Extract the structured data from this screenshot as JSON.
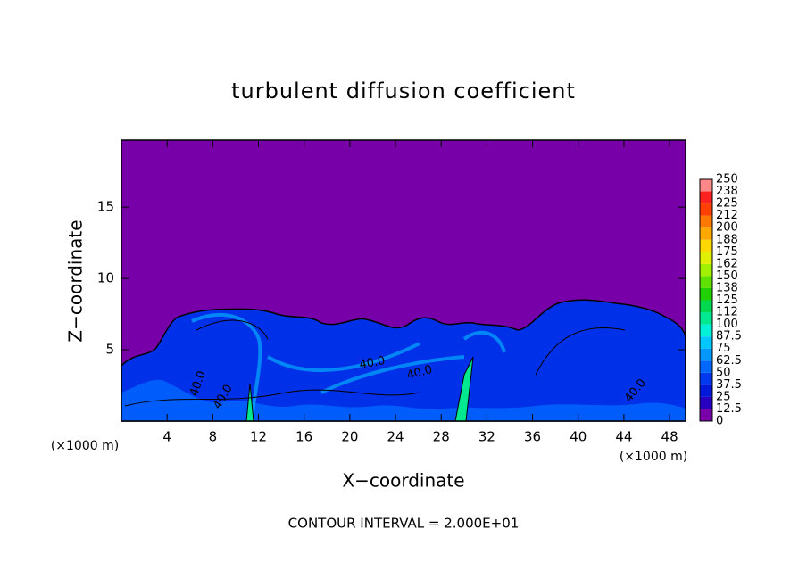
{
  "chart_data": {
    "type": "contour",
    "title": "turbulent diffusion coefficient",
    "x_label": "X−coordinate",
    "y_label": "Z−coordinate",
    "x_unit": "(×1000 m)",
    "footer": "CONTOUR INTERVAL = 2.000E+01",
    "xlim": [
      0,
      49.4
    ],
    "ylim": [
      0,
      19.7
    ],
    "xticks": [
      4,
      8,
      12,
      16,
      20,
      24,
      28,
      32,
      36,
      40,
      44,
      48
    ],
    "yticks": [
      5,
      10,
      15
    ],
    "contour_labels": [
      "40.0",
      "40.0",
      "40.0",
      "40.0",
      "40.0"
    ],
    "colorbar": {
      "levels": [
        0,
        12.5,
        25,
        37.5,
        50,
        62.5,
        75,
        87.5,
        100,
        112,
        125,
        138,
        150,
        162,
        175,
        188,
        200,
        212,
        225,
        238,
        250
      ],
      "colors": [
        "#7800a8",
        "#2800c0",
        "#0018d8",
        "#0038f0",
        "#0068ff",
        "#0098ff",
        "#00c8ff",
        "#00f0d8",
        "#00e890",
        "#00d850",
        "#20d000",
        "#60e000",
        "#a0f000",
        "#e0f000",
        "#ffd800",
        "#ffa800",
        "#ff7800",
        "#ff4000",
        "#ff2020",
        "#ff8888"
      ]
    }
  }
}
